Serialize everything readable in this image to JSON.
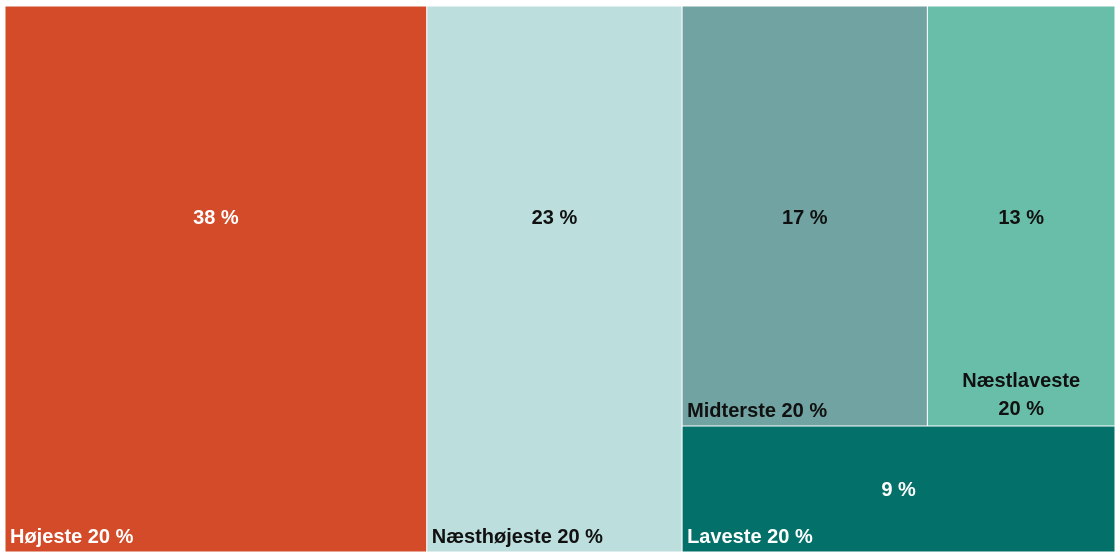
{
  "chart_data": {
    "type": "treemap",
    "title": "",
    "items": [
      {
        "name": "Højeste 20 %",
        "value": 38,
        "value_label": "38 %",
        "color": "#d34b28",
        "text_color": "#ffffff"
      },
      {
        "name": "Næsthøjeste 20 %",
        "value": 23,
        "value_label": "23 %",
        "color": "#bcdedd",
        "text_color": "#111111"
      },
      {
        "name": "Midterste 20 %",
        "value": 17,
        "value_label": "17 %",
        "color": "#70a3a2",
        "text_color": "#111111"
      },
      {
        "name": "Næstlaveste 20 %",
        "value": 13,
        "value_label": "13 %",
        "color": "#69bea9",
        "text_color": "#111111"
      },
      {
        "name": "Laveste 20 %",
        "value": 9,
        "value_label": "9 %",
        "color": "#037169",
        "text_color": "#ffffff"
      }
    ]
  }
}
